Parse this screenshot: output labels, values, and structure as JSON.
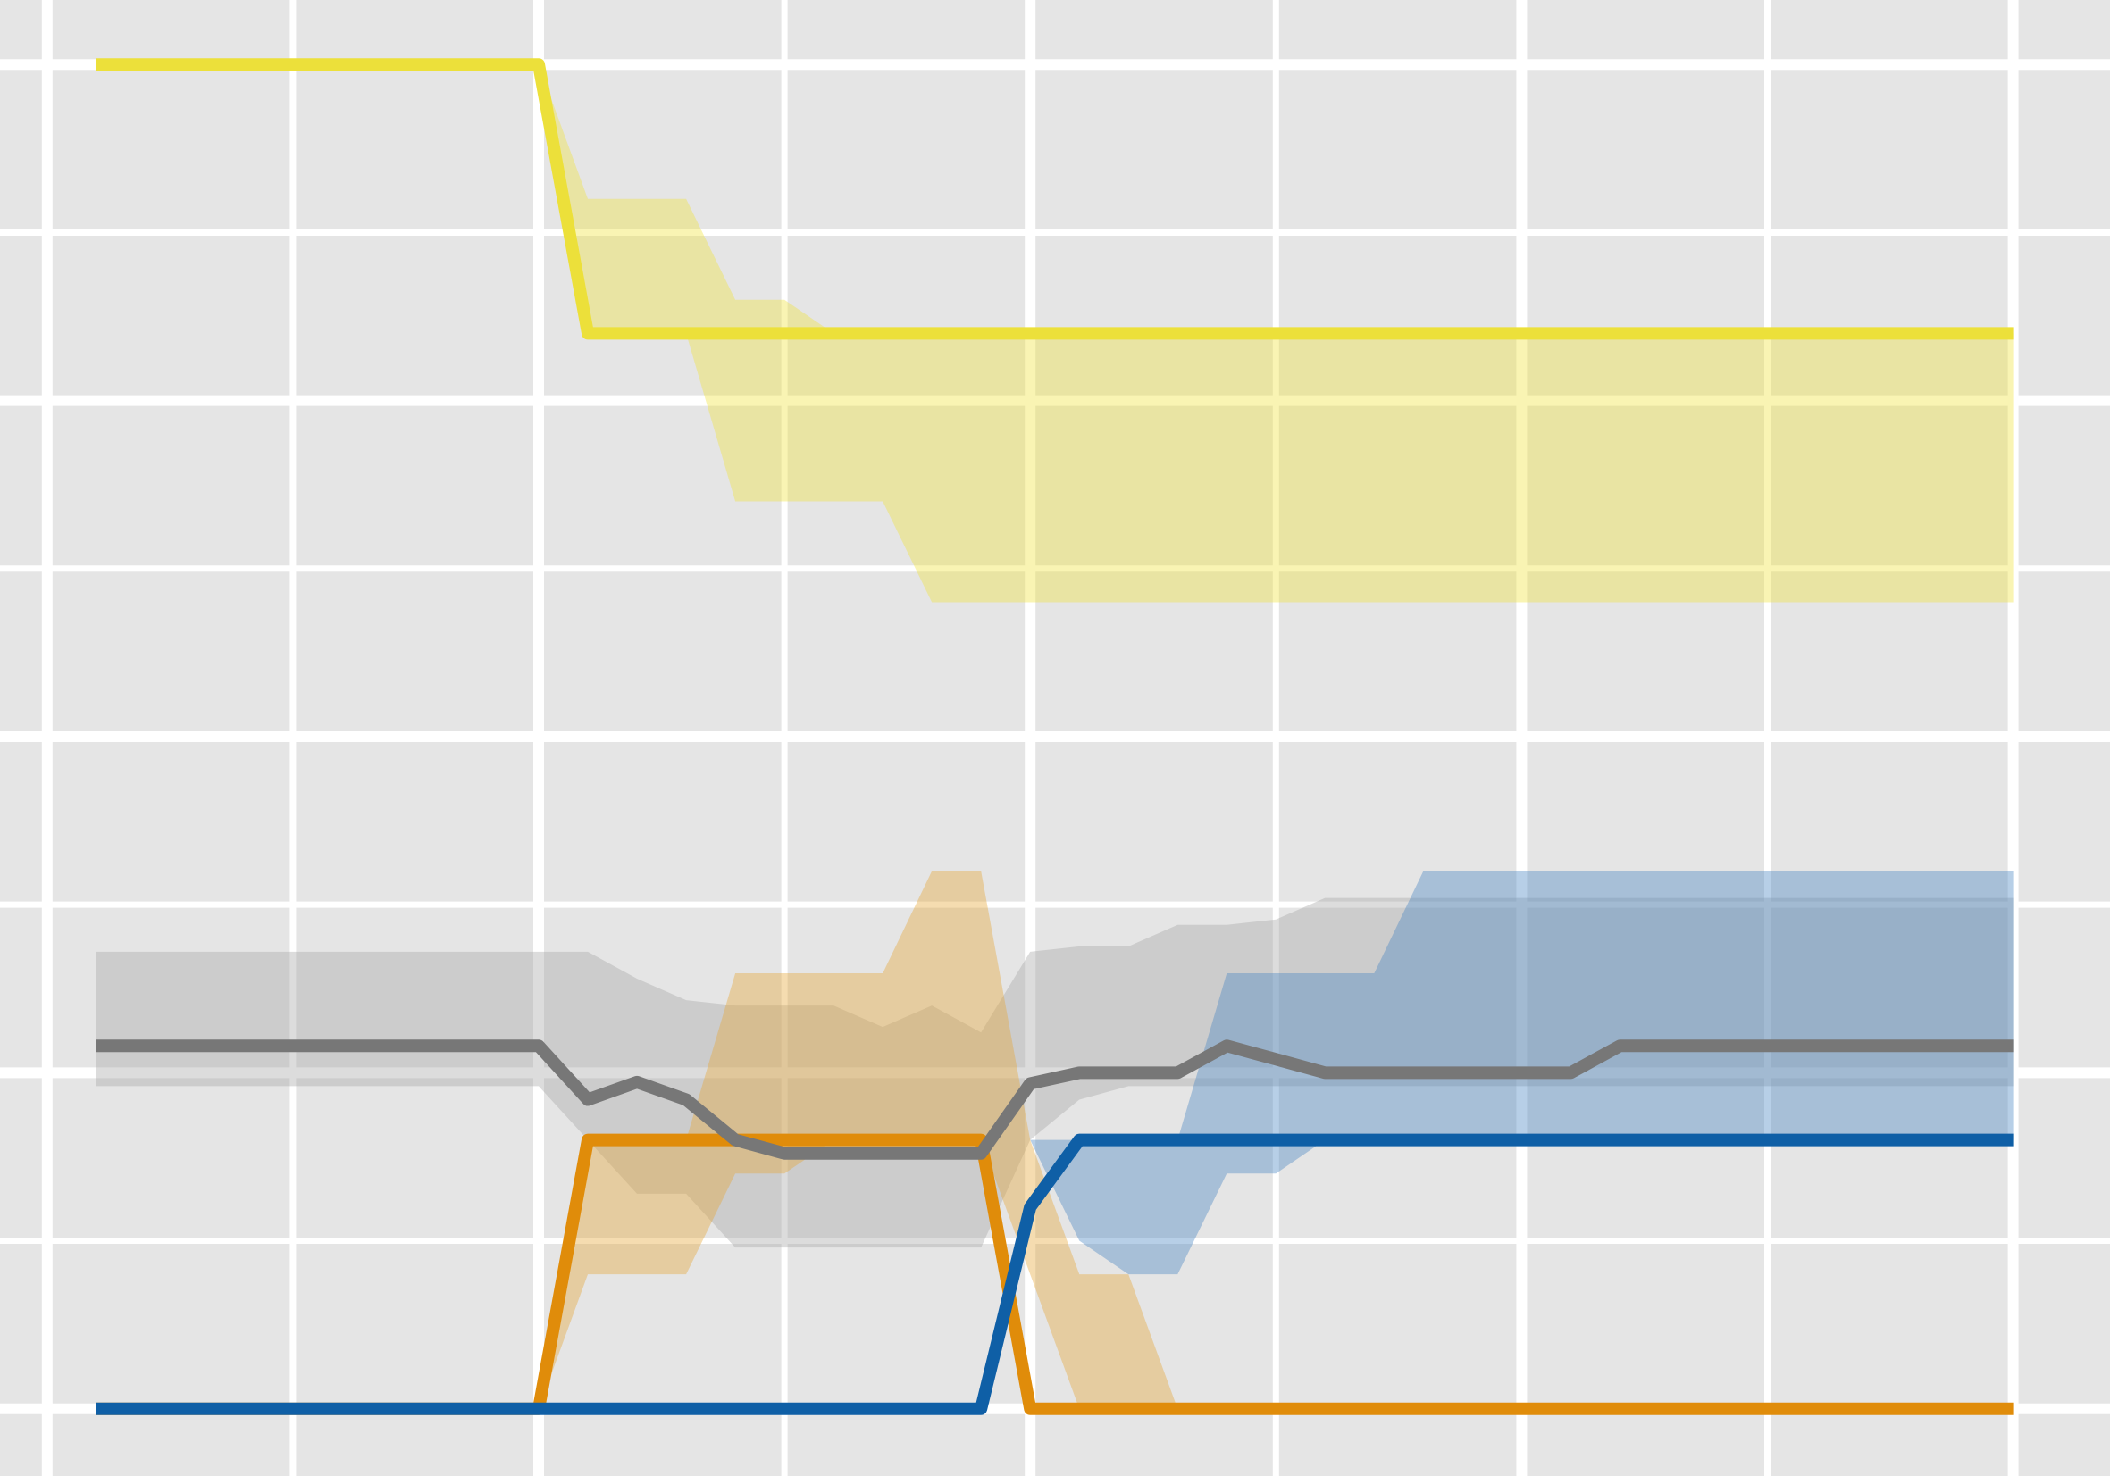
{
  "chart_data": {
    "type": "line",
    "xlim": [
      -0.96,
      41.97
    ],
    "ylim": [
      -0.05,
      1.048
    ],
    "xticks": [
      0,
      5,
      10,
      15,
      20,
      25,
      30,
      35,
      40
    ],
    "yticks": [
      0,
      0.125,
      0.25,
      0.375,
      0.5,
      0.625,
      0.75,
      0.875,
      1
    ],
    "grid": true,
    "background": "#e5e5e5",
    "x": [
      1,
      2,
      3,
      4,
      5,
      6,
      7,
      8,
      9,
      10,
      11,
      12,
      13,
      14,
      15,
      16,
      17,
      18,
      19,
      20,
      21,
      22,
      23,
      24,
      25,
      26,
      27,
      28,
      29,
      30,
      31,
      32,
      33,
      34,
      35,
      36,
      37,
      38,
      39,
      40
    ],
    "series": [
      {
        "color": "#ece03a",
        "band_color": "#f0e442",
        "values": [
          1,
          1,
          1,
          1,
          1,
          1,
          1,
          1,
          1,
          1,
          0.8,
          0.8,
          0.8,
          0.8,
          0.8,
          0.8,
          0.8,
          0.8,
          0.8,
          0.8,
          0.8,
          0.8,
          0.8,
          0.8,
          0.8,
          0.8,
          0.8,
          0.8,
          0.8,
          0.8,
          0.8,
          0.8,
          0.8,
          0.8,
          0.8,
          0.8,
          0.8,
          0.8,
          0.8,
          0.8
        ],
        "upper": [
          1,
          1,
          1,
          1,
          1,
          1,
          1,
          1,
          1,
          1,
          0.9,
          0.9,
          0.9,
          0.825,
          0.825,
          0.8,
          0.8,
          0.8,
          0.8,
          0.8,
          0.8,
          0.8,
          0.8,
          0.8,
          0.8,
          0.8,
          0.8,
          0.8,
          0.8,
          0.8,
          0.8,
          0.8,
          0.8,
          0.8,
          0.8,
          0.8,
          0.8,
          0.8,
          0.8,
          0.8
        ],
        "lower": [
          1,
          1,
          1,
          1,
          1,
          1,
          1,
          1,
          1,
          1,
          0.8,
          0.8,
          0.8,
          0.675,
          0.675,
          0.675,
          0.675,
          0.6,
          0.6,
          0.6,
          0.6,
          0.6,
          0.6,
          0.6,
          0.6,
          0.6,
          0.6,
          0.6,
          0.6,
          0.6,
          0.6,
          0.6,
          0.6,
          0.6,
          0.6,
          0.6,
          0.6,
          0.6,
          0.6,
          0.6
        ]
      },
      {
        "color": "#777777",
        "band_color": "#a8a8a8",
        "values": [
          0.27,
          0.27,
          0.27,
          0.27,
          0.27,
          0.27,
          0.27,
          0.27,
          0.27,
          0.27,
          0.23,
          0.243,
          0.23,
          0.2,
          0.19,
          0.19,
          0.19,
          0.19,
          0.19,
          0.242,
          0.25,
          0.25,
          0.25,
          0.27,
          0.26,
          0.25,
          0.25,
          0.25,
          0.25,
          0.25,
          0.25,
          0.27,
          0.27,
          0.27,
          0.27,
          0.27,
          0.27,
          0.27,
          0.27,
          0.27
        ],
        "upper": [
          0.34,
          0.34,
          0.34,
          0.34,
          0.34,
          0.34,
          0.34,
          0.34,
          0.34,
          0.34,
          0.34,
          0.32,
          0.304,
          0.3,
          0.3,
          0.3,
          0.284,
          0.3,
          0.28,
          0.34,
          0.344,
          0.344,
          0.36,
          0.36,
          0.364,
          0.38,
          0.38,
          0.38,
          0.38,
          0.38,
          0.38,
          0.38,
          0.38,
          0.38,
          0.38,
          0.38,
          0.38,
          0.38,
          0.38,
          0.38
        ],
        "lower": [
          0.24,
          0.24,
          0.24,
          0.24,
          0.24,
          0.24,
          0.24,
          0.24,
          0.24,
          0.24,
          0.2,
          0.16,
          0.16,
          0.12,
          0.12,
          0.12,
          0.12,
          0.12,
          0.12,
          0.2,
          0.23,
          0.24,
          0.24,
          0.24,
          0.24,
          0.24,
          0.24,
          0.24,
          0.24,
          0.24,
          0.24,
          0.24,
          0.24,
          0.24,
          0.24,
          0.24,
          0.24,
          0.24,
          0.24,
          0.24
        ]
      },
      {
        "color": "#e08c0a",
        "band_color": "#e6a73a",
        "values": [
          0,
          0,
          0,
          0,
          0,
          0,
          0,
          0,
          0,
          0,
          0.2,
          0.2,
          0.2,
          0.2,
          0.2,
          0.2,
          0.2,
          0.2,
          0.2,
          0,
          0,
          0,
          0,
          0,
          0,
          0,
          0,
          0,
          0,
          0,
          0,
          0,
          0,
          0,
          0,
          0,
          0,
          0,
          0,
          0
        ],
        "upper": [
          0,
          0,
          0,
          0,
          0,
          0,
          0,
          0,
          0,
          0,
          0.2,
          0.2,
          0.2,
          0.324,
          0.324,
          0.324,
          0.324,
          0.4,
          0.4,
          0.2,
          0.1,
          0.1,
          0,
          0,
          0,
          0,
          0,
          0,
          0,
          0,
          0,
          0,
          0,
          0,
          0,
          0,
          0,
          0,
          0,
          0
        ],
        "lower": [
          0,
          0,
          0,
          0,
          0,
          0,
          0,
          0,
          0,
          0,
          0.1,
          0.1,
          0.1,
          0.175,
          0.175,
          0.2,
          0.2,
          0.2,
          0.2,
          0.1,
          0,
          0,
          0,
          0,
          0,
          0,
          0,
          0,
          0,
          0,
          0,
          0,
          0,
          0,
          0,
          0,
          0,
          0,
          0,
          0
        ]
      },
      {
        "color": "#0f5fa6",
        "band_color": "#4a86c2",
        "values": [
          0,
          0,
          0,
          0,
          0,
          0,
          0,
          0,
          0,
          0,
          0,
          0,
          0,
          0,
          0,
          0,
          0,
          0,
          0,
          0.15,
          0.2,
          0.2,
          0.2,
          0.2,
          0.2,
          0.2,
          0.2,
          0.2,
          0.2,
          0.2,
          0.2,
          0.2,
          0.2,
          0.2,
          0.2,
          0.2,
          0.2,
          0.2,
          0.2,
          0.2
        ],
        "upper": [
          null,
          null,
          null,
          null,
          null,
          null,
          null,
          null,
          null,
          null,
          null,
          null,
          null,
          null,
          null,
          null,
          null,
          null,
          null,
          0.2,
          0.2,
          0.2,
          0.2,
          0.324,
          0.324,
          0.324,
          0.324,
          0.4,
          0.4,
          0.4,
          0.4,
          0.4,
          0.4,
          0.4,
          0.4,
          0.4,
          0.4,
          0.4,
          0.4,
          0.4
        ],
        "lower": [
          null,
          null,
          null,
          null,
          null,
          null,
          null,
          null,
          null,
          null,
          null,
          null,
          null,
          null,
          null,
          null,
          null,
          null,
          null,
          0.2,
          0.125,
          0.1,
          0.1,
          0.175,
          0.175,
          0.2,
          0.2,
          0.2,
          0.2,
          0.2,
          0.2,
          0.2,
          0.2,
          0.2,
          0.2,
          0.2,
          0.2,
          0.2,
          0.2,
          0.2
        ]
      }
    ],
    "draw_order": [
      0,
      2,
      3,
      1
    ]
  }
}
